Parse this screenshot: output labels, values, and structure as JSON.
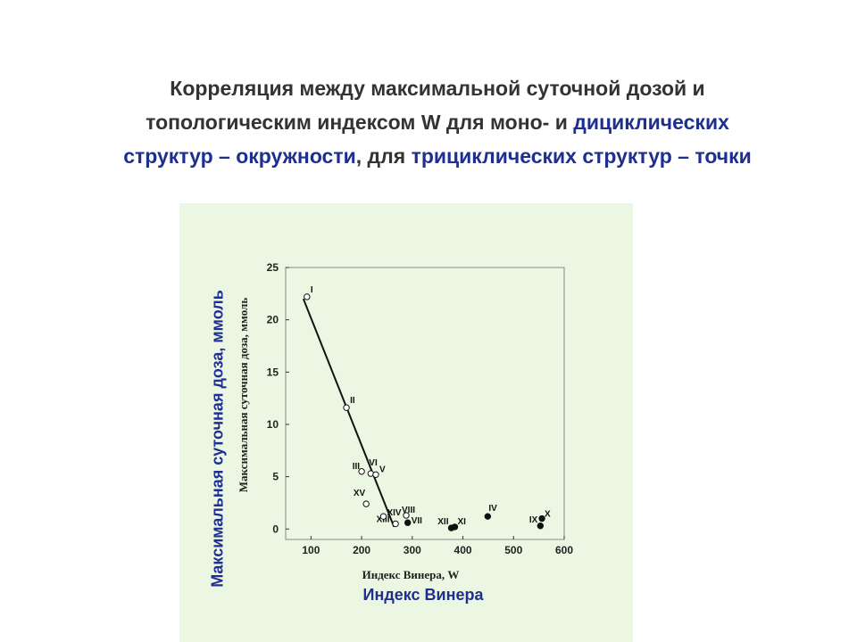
{
  "title": {
    "line1": "Корреляция между максимальной суточной дозой   и",
    "line2_a": "топологическим индексом W для моно- и ",
    "line2_b": "дициклических",
    "line3_a": "структур – окружности",
    "line3_b": ", для ",
    "line3_c": "трициклических структур – точки"
  },
  "colors": {
    "blue": "#1f2f8f",
    "panel": "#ebf7e2"
  },
  "chart_data": {
    "type": "scatter",
    "xlabel": "Индекс Винера, W",
    "ylabel": "Максимальная суточная доза, ммоль",
    "xlabel_ru": "Индекс Винера",
    "ylabel_ru": "Максимальная суточная доза, ммоль",
    "xlim": [
      50,
      600
    ],
    "ylim": [
      -1,
      25
    ],
    "xticks": [
      100,
      200,
      300,
      400,
      500,
      600
    ],
    "yticks": [
      0,
      5,
      10,
      15,
      20,
      25
    ],
    "series": [
      {
        "marker": "open-circle",
        "points": [
          {
            "label": "I",
            "x": 92,
            "y": 22.2
          },
          {
            "label": "II",
            "x": 170,
            "y": 11.6
          },
          {
            "label": "III",
            "x": 200,
            "y": 5.5
          },
          {
            "label": "VI",
            "x": 218,
            "y": 5.3
          },
          {
            "label": "V",
            "x": 228,
            "y": 5.2
          },
          {
            "label": "XV",
            "x": 209,
            "y": 2.4
          },
          {
            "label": "XIII",
            "x": 267,
            "y": 0.5
          },
          {
            "label": "XIV",
            "x": 243,
            "y": 1.2
          },
          {
            "label": "VIII",
            "x": 288,
            "y": 1.3
          }
        ]
      },
      {
        "marker": "filled-circle",
        "points": [
          {
            "label": "VII",
            "x": 291,
            "y": 0.6
          },
          {
            "label": "XII",
            "x": 377,
            "y": 0.1
          },
          {
            "label": "XI",
            "x": 384,
            "y": 0.2
          },
          {
            "label": "IV",
            "x": 449,
            "y": 1.2
          },
          {
            "label": "IX",
            "x": 553,
            "y": 0.3
          },
          {
            "label": "X",
            "x": 556,
            "y": 1.0
          }
        ]
      }
    ],
    "fit_line": {
      "x1": 85,
      "y1": 22.0,
      "x2": 264,
      "y2": 0.2
    }
  }
}
